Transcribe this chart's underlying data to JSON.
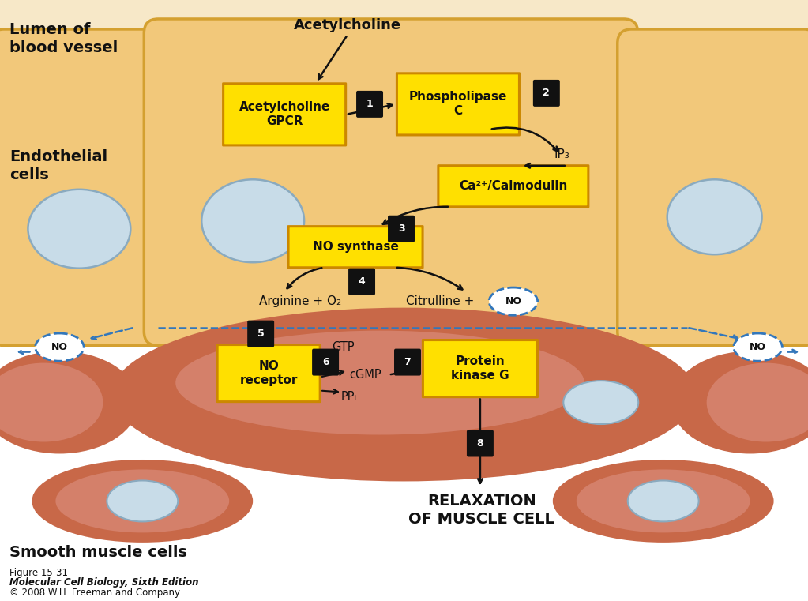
{
  "bg_color": "#ffffff",
  "figsize": [
    10.23,
    7.61
  ],
  "dpi": 100,
  "lumen_bg": "#f7e8c8",
  "endothelial_cell_color": "#f2c87a",
  "endothelial_cell_border": "#d4a030",
  "smooth_muscle_dark": "#c86848",
  "smooth_muscle_mid": "#d4806a",
  "smooth_muscle_light": "#e0a888",
  "gap_bg": "#f7e0c8",
  "nucleus_color": "#c8dce8",
  "nucleus_border": "#8aaabf",
  "box_yellow": "#ffe000",
  "box_yellow_border": "#cc8800",
  "box_step_bg": "#111111",
  "box_step_text": "#ffffff",
  "no_circle_border": "#3377bb",
  "no_circle_bg": "#ffffff",
  "arrow_color": "#111111",
  "dashed_arrow_color": "#3377bb",
  "text_dark": "#111111",
  "labels": {
    "lumen": "Lumen of\nblood vessel",
    "endothelial": "Endothelial\ncells",
    "smooth_muscle": "Smooth muscle cells",
    "acetylcholine_top": "Acetylcholine",
    "box1": "Acetylcholine\nGPCR",
    "box_phospholipase": "Phospholipase\nC",
    "ip3": "IP₃",
    "box_calmodulin": "Ca²⁺/Calmodulin",
    "box_nos": "NO synthase",
    "arginine": "Arginine + O₂",
    "citrulline": "Citrulline + ",
    "box_no_receptor": "NO\nreceptor",
    "gtp": "GTP",
    "cgmp": "cGMP",
    "ppi": "PPᵢ",
    "box_protein_kinase": "Protein\nkinase G",
    "relaxation1": "RELAXATION",
    "relaxation2": "OF MUSCLE CELL",
    "no_label": "NO",
    "step1": "1",
    "step2": "2",
    "step3": "3",
    "step4": "4",
    "step5": "5",
    "step6": "6",
    "step7": "7",
    "step8": "8",
    "figure_caption1": "Figure 15-31",
    "figure_caption2": "Molecular Cell Biology, Sixth Edition",
    "figure_caption3": "© 2008 W.H. Freeman and Company"
  }
}
